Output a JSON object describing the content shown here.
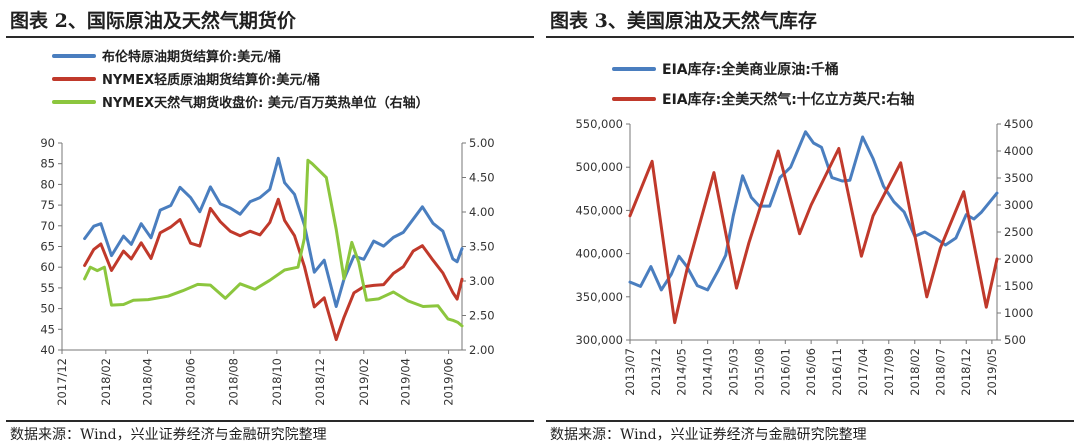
{
  "left": {
    "title": "图表 2、国际原油及天然气期货价",
    "source": "数据来源：Wind，兴业证券经济与金融研究院整理",
    "legend": [
      {
        "label": "布伦特原油期货结算价:美元/桶",
        "color": "#4a7ebf"
      },
      {
        "label": "NYMEX轻质原油期货结算价:美元/桶",
        "color": "#c0392b"
      },
      {
        "label": "NYMEX天然气期货收盘价: 美元/百万英热单位（右轴）",
        "color": "#8cc63e"
      }
    ]
  },
  "right": {
    "title": "图表 3、美国原油及天然气库存",
    "source": "数据来源：Wind，兴业证券经济与金融研究院整理",
    "legend": [
      {
        "label": "EIA库存:全美商业原油:千桶",
        "color": "#4a7ebf"
      },
      {
        "label": "EIA库存:全美天然气:十亿立方英尺:右轴",
        "color": "#c0392b"
      }
    ]
  },
  "chart_data": [
    {
      "type": "line",
      "title": "图表 2、国际原油及天然气期货价",
      "x_ticks": [
        "2017/12",
        "2018/02",
        "2018/04",
        "2018/06",
        "2018/08",
        "2018/10",
        "2018/12",
        "2019/02",
        "2019/04",
        "2019/06"
      ],
      "y_left_ticks": [
        "40",
        "45",
        "50",
        "55",
        "60",
        "65",
        "70",
        "75",
        "80",
        "85",
        "90"
      ],
      "y_right_ticks": [
        "2.00",
        "2.50",
        "3.00",
        "3.50",
        "4.00",
        "4.50",
        "5.00"
      ],
      "ylim_left": [
        40,
        90
      ],
      "ylim_right": [
        2.0,
        5.0
      ],
      "xlim": [
        "2017-12-01",
        "2019-06-20"
      ],
      "grid": false,
      "series": [
        {
          "name": "布伦特原油期货结算价:美元/桶",
          "axis": "left",
          "x": [
            "2018-01-02",
            "2018-01-15",
            "2018-01-25",
            "2018-02-09",
            "2018-02-26",
            "2018-03-09",
            "2018-03-23",
            "2018-04-06",
            "2018-04-19",
            "2018-05-04",
            "2018-05-17",
            "2018-06-01",
            "2018-06-14",
            "2018-06-29",
            "2018-07-13",
            "2018-07-27",
            "2018-08-10",
            "2018-08-24",
            "2018-09-07",
            "2018-09-21",
            "2018-10-03",
            "2018-10-12",
            "2018-10-26",
            "2018-11-09",
            "2018-11-23",
            "2018-12-07",
            "2018-12-24",
            "2019-01-04",
            "2019-01-18",
            "2019-02-01",
            "2019-02-15",
            "2019-03-01",
            "2019-03-15",
            "2019-03-29",
            "2019-04-12",
            "2019-04-25",
            "2019-05-10",
            "2019-05-24",
            "2019-06-07",
            "2019-06-13",
            "2019-06-20"
          ],
          "values": [
            66.9,
            69.9,
            70.5,
            62.8,
            67.5,
            65.5,
            70.5,
            67.1,
            73.8,
            74.9,
            79.3,
            76.8,
            73.4,
            79.4,
            75.3,
            74.3,
            72.8,
            75.8,
            76.8,
            78.8,
            86.3,
            80.4,
            77.6,
            70.2,
            58.8,
            61.7,
            50.5,
            57.1,
            62.7,
            61.9,
            66.3,
            65.1,
            67.2,
            68.4,
            71.6,
            74.6,
            70.6,
            68.7,
            62.0,
            61.3,
            64.5
          ]
        },
        {
          "name": "NYMEX轻质原油期货结算价:美元/桶",
          "axis": "left",
          "x": [
            "2018-01-02",
            "2018-01-15",
            "2018-01-25",
            "2018-02-09",
            "2018-02-26",
            "2018-03-09",
            "2018-03-23",
            "2018-04-06",
            "2018-04-19",
            "2018-05-04",
            "2018-05-17",
            "2018-06-01",
            "2018-06-14",
            "2018-06-29",
            "2018-07-13",
            "2018-07-27",
            "2018-08-10",
            "2018-08-24",
            "2018-09-07",
            "2018-09-21",
            "2018-10-03",
            "2018-10-12",
            "2018-10-26",
            "2018-11-09",
            "2018-11-23",
            "2018-12-07",
            "2018-12-24",
            "2019-01-04",
            "2019-01-18",
            "2019-02-01",
            "2019-02-15",
            "2019-03-01",
            "2019-03-15",
            "2019-03-29",
            "2019-04-12",
            "2019-04-25",
            "2019-05-10",
            "2019-05-24",
            "2019-06-07",
            "2019-06-13",
            "2019-06-20"
          ],
          "values": [
            60.4,
            64.3,
            65.6,
            59.2,
            63.9,
            62.0,
            65.9,
            62.1,
            68.3,
            69.7,
            71.5,
            65.8,
            65.1,
            74.2,
            71.0,
            68.7,
            67.6,
            68.7,
            67.8,
            70.8,
            76.4,
            71.3,
            67.6,
            60.2,
            50.4,
            52.6,
            42.5,
            47.9,
            53.8,
            55.3,
            55.6,
            55.8,
            58.5,
            60.1,
            63.9,
            65.2,
            61.7,
            58.6,
            53.9,
            52.3,
            57.1
          ]
        },
        {
          "name": "NYMEX天然气期货收盘价: 美元/百万英热单位（右轴）",
          "axis": "right",
          "x": [
            "2018-01-02",
            "2018-01-10",
            "2018-01-20",
            "2018-01-30",
            "2018-02-09",
            "2018-02-26",
            "2018-03-12",
            "2018-04-02",
            "2018-04-30",
            "2018-05-21",
            "2018-06-11",
            "2018-06-29",
            "2018-07-20",
            "2018-08-10",
            "2018-08-31",
            "2018-09-21",
            "2018-10-12",
            "2018-10-31",
            "2018-11-09",
            "2018-11-14",
            "2018-11-20",
            "2018-11-30",
            "2018-12-10",
            "2018-12-24",
            "2019-01-04",
            "2019-01-15",
            "2019-01-25",
            "2019-02-05",
            "2019-02-22",
            "2019-03-15",
            "2019-04-05",
            "2019-04-26",
            "2019-05-17",
            "2019-05-31",
            "2019-06-07",
            "2019-06-14",
            "2019-06-20"
          ],
          "values": [
            3.03,
            3.2,
            3.15,
            3.2,
            2.65,
            2.66,
            2.72,
            2.73,
            2.78,
            2.86,
            2.95,
            2.94,
            2.75,
            2.96,
            2.88,
            3.01,
            3.16,
            3.2,
            3.62,
            4.75,
            4.7,
            4.6,
            4.5,
            3.75,
            3.03,
            3.56,
            3.27,
            2.72,
            2.74,
            2.84,
            2.71,
            2.63,
            2.64,
            2.45,
            2.43,
            2.4,
            2.35
          ]
        }
      ]
    },
    {
      "type": "line",
      "title": "图表 3、美国原油及天然气库存",
      "x_ticks": [
        "2013/07",
        "2013/12",
        "2014/05",
        "2014/10",
        "2015/03",
        "2015/08",
        "2016/01",
        "2016/06",
        "2016/11",
        "2017/04",
        "2017/09",
        "2018/02",
        "2018/07",
        "2018/12",
        "2019/05"
      ],
      "y_left_ticks": [
        "300,000",
        "350,000",
        "400,000",
        "450,000",
        "500,000",
        "550,000"
      ],
      "y_right_ticks": [
        "500",
        "1000",
        "1500",
        "2000",
        "2500",
        "3000",
        "3500",
        "4000",
        "4500"
      ],
      "ylim_left": [
        300000,
        550000
      ],
      "ylim_right": [
        500,
        4500
      ],
      "xlim": [
        "2013-07-01",
        "2019-05-31"
      ],
      "grid": false,
      "series": [
        {
          "name": "EIA库存:全美商业原油:千桶",
          "axis": "left",
          "x": [
            "2013-07-01",
            "2013-09-01",
            "2013-11-01",
            "2014-01-01",
            "2014-03-01",
            "2014-04-15",
            "2014-06-01",
            "2014-08-01",
            "2014-10-01",
            "2014-12-01",
            "2015-01-15",
            "2015-03-01",
            "2015-04-25",
            "2015-06-15",
            "2015-08-01",
            "2015-10-01",
            "2015-12-01",
            "2016-02-01",
            "2016-04-29",
            "2016-06-15",
            "2016-08-01",
            "2016-10-01",
            "2016-12-01",
            "2017-01-15",
            "2017-03-31",
            "2017-06-01",
            "2017-08-01",
            "2017-10-01",
            "2017-12-01",
            "2018-02-01",
            "2018-04-01",
            "2018-06-01",
            "2018-08-01",
            "2018-10-01",
            "2018-12-01",
            "2019-01-15",
            "2019-03-01",
            "2019-05-31"
          ],
          "values": [
            367000,
            362000,
            385000,
            358000,
            376000,
            397000,
            385000,
            363000,
            358000,
            380000,
            398000,
            444000,
            490000,
            465000,
            455000,
            455000,
            488000,
            500000,
            541000,
            528000,
            523000,
            488000,
            484000,
            485000,
            535000,
            510000,
            478000,
            460000,
            448000,
            420000,
            425000,
            418000,
            410000,
            418000,
            445000,
            440000,
            448000,
            470000
          ]
        },
        {
          "name": "EIA库存:全美天然气:十亿立方英尺:右轴",
          "axis": "right",
          "x": [
            "2013-07-01",
            "2013-11-08",
            "2014-03-21",
            "2014-06-01",
            "2014-11-07",
            "2015-03-20",
            "2015-06-01",
            "2015-11-20",
            "2016-03-25",
            "2016-06-01",
            "2016-11-11",
            "2017-03-24",
            "2017-06-01",
            "2017-11-10",
            "2018-04-13",
            "2018-07-01",
            "2018-11-16",
            "2019-03-29",
            "2019-05-31"
          ],
          "values": [
            2800,
            3810,
            822,
            1800,
            3600,
            1461,
            2300,
            4000,
            2468,
            3000,
            4047,
            2051,
            2800,
            3782,
            1299,
            2200,
            3247,
            1107,
            2000
          ]
        }
      ]
    }
  ]
}
